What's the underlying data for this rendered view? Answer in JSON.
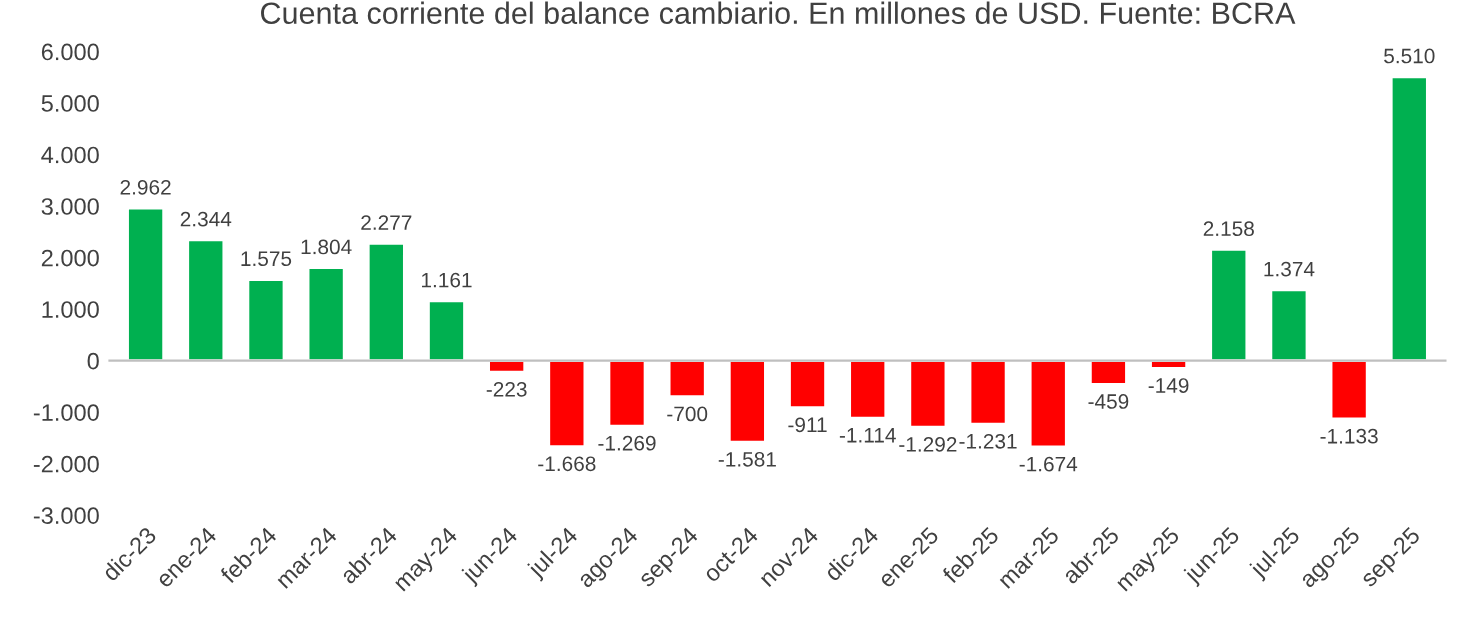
{
  "chart_data": {
    "type": "bar",
    "title": "Cuenta corriente del balance cambiario. En millones de USD. Fuente: BCRA",
    "categories": [
      "dic-23",
      "ene-24",
      "feb-24",
      "mar-24",
      "abr-24",
      "may-24",
      "jun-24",
      "jul-24",
      "ago-24",
      "sep-24",
      "oct-24",
      "nov-24",
      "dic-24",
      "ene-25",
      "feb-25",
      "mar-25",
      "abr-25",
      "may-25",
      "jun-25",
      "jul-25",
      "ago-25",
      "sep-25"
    ],
    "values": [
      2962,
      2344,
      1575,
      1804,
      2277,
      1161,
      -223,
      -1668,
      -1269,
      -700,
      -1581,
      -911,
      -1114,
      -1292,
      -1231,
      -1674,
      -459,
      -149,
      2158,
      1374,
      -1133,
      5510
    ],
    "value_labels": [
      "2.962",
      "2.344",
      "1.575",
      "1.804",
      "2.277",
      "1.161",
      "-223",
      "-1.668",
      "-1.269",
      "-700",
      "-1.581",
      "-911",
      "-1.114",
      "-1.292",
      "-1.231",
      "-1.674",
      "-459",
      "-149",
      "2.158",
      "1.374",
      "-1.133",
      "5.510"
    ],
    "colors": [
      "#00b050",
      "#00b050",
      "#00b050",
      "#00b050",
      "#00b050",
      "#00b050",
      "#ff0000",
      "#ff0000",
      "#ff0000",
      "#ff0000",
      "#ff0000",
      "#ff0000",
      "#ff0000",
      "#ff0000",
      "#ff0000",
      "#ff0000",
      "#ff0000",
      "#ff0000",
      "#00b050",
      "#00b050",
      "#ff0000",
      "#00b050"
    ],
    "ylim": [
      -3000,
      6000
    ],
    "yticks": [
      {
        "value": -3000,
        "label": "-3.000"
      },
      {
        "value": -2000,
        "label": "-2.000"
      },
      {
        "value": -1000,
        "label": "-1.000"
      },
      {
        "value": 0,
        "label": "0"
      },
      {
        "value": 1000,
        "label": "1.000"
      },
      {
        "value": 2000,
        "label": "2.000"
      },
      {
        "value": 3000,
        "label": "3.000"
      },
      {
        "value": 4000,
        "label": "4.000"
      },
      {
        "value": 5000,
        "label": "5.000"
      },
      {
        "value": 6000,
        "label": "6.000"
      }
    ],
    "legend": false
  }
}
